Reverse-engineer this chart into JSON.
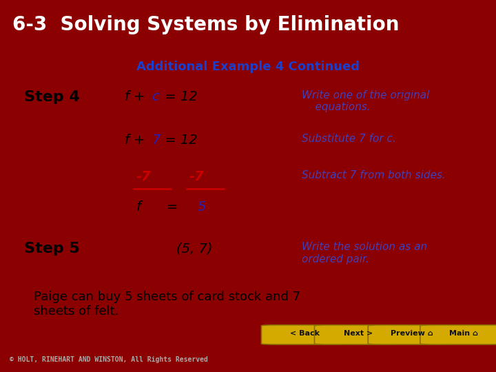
{
  "title": "6-3  Solving Systems by Elimination",
  "title_bg": "#6B0000",
  "title_color": "#FFFFFF",
  "subtitle": "Additional Example 4 Continued",
  "subtitle_color": "#1a3fcc",
  "content_bg": "#FFFFFF",
  "outer_bg": "#8B0000",
  "footer_bar_bg": "#111111",
  "step4_label": "Step 4",
  "step5_label": "Step 5",
  "step_color": "#000000",
  "eq_black": "#000000",
  "eq_blue": "#2222BB",
  "eq_red": "#CC0000",
  "desc_color": "#4040BB",
  "step5_eq": "(5, 7)",
  "conclusion": "Paige can buy 5 sheets of card stock and 7\nsheets of felt.",
  "conclusion_color": "#000000",
  "footer_text": "© HOLT, RINEHART AND WINSTON, All Rights Reserved",
  "nav_buttons": [
    "< Back",
    "Next >",
    "Preview â¢",
    "Main â¢"
  ],
  "nav_labels": [
    "< Back",
    "Next >",
    "Preview",
    "Main"
  ],
  "nav_bg": "#D4AA00",
  "nav_border": "#8B7000"
}
